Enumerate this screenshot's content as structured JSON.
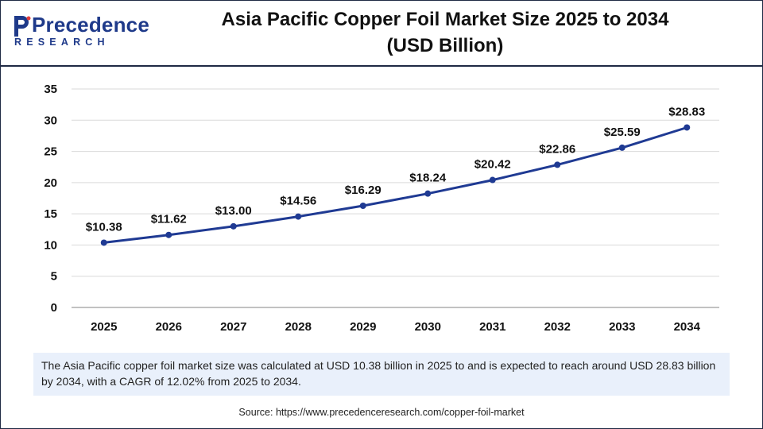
{
  "brand": {
    "name": "Precedence",
    "sub": "RESEARCH"
  },
  "title": {
    "line1": "Asia Pacific Copper Foil Market Size 2025 to 2034",
    "line2": "(USD Billion)"
  },
  "chart_data": {
    "type": "line",
    "categories": [
      "2025",
      "2026",
      "2027",
      "2028",
      "2029",
      "2030",
      "2031",
      "2032",
      "2033",
      "2034"
    ],
    "values": [
      10.38,
      11.62,
      13.0,
      14.56,
      16.29,
      18.24,
      20.42,
      22.86,
      25.59,
      28.83
    ],
    "data_labels": [
      "$10.38",
      "$11.62",
      "$13.00",
      "$14.56",
      "$16.29",
      "$18.24",
      "$20.42",
      "$22.86",
      "$25.59",
      "$28.83"
    ],
    "ylim": [
      0,
      35
    ],
    "yticks": [
      "0",
      "5",
      "10",
      "15",
      "20",
      "25",
      "30",
      "35"
    ],
    "grid": "horizontal",
    "line_color": "#1f3a93",
    "xlabel": "",
    "ylabel": ""
  },
  "note": "The Asia Pacific  copper foil market size was calculated at USD 10.38 billion in 2025 to and is expected to reach around USD 28.83 billion by 2034, with a CAGR of 12.02% from 2025 to 2034.",
  "source": "Source: https://www.precedenceresearch.com/copper-foil-market"
}
